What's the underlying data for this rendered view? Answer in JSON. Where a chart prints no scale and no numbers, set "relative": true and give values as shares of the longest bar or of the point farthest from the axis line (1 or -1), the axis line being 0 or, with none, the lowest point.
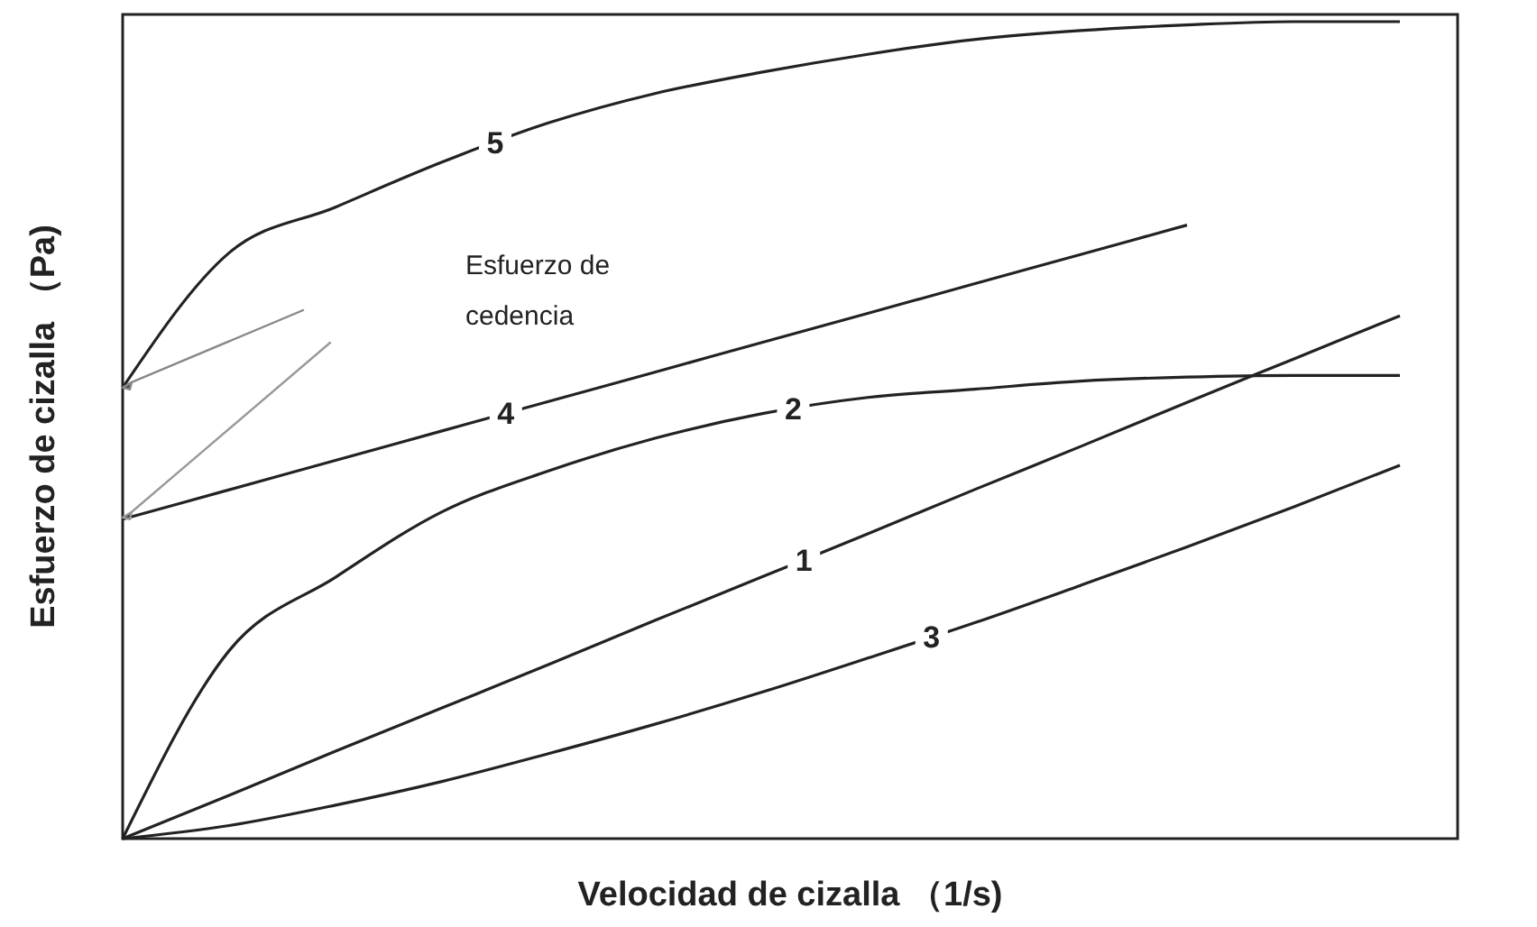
{
  "chart_data": {
    "type": "line",
    "relative": true,
    "xlabel": "Velocidad de cizalla （1/s)",
    "ylabel": "Esfuerzo de cizalla （Pa)",
    "categories": [
      null,
      null,
      null,
      null,
      null,
      null,
      null,
      null,
      null,
      null,
      null,
      null,
      null
    ],
    "marker": "none",
    "line_style": "solid",
    "series": [
      {
        "name": "1",
        "color": "#222222",
        "values": [
          0,
          0.053,
          0.107,
          0.16,
          0.213,
          0.267,
          0.32,
          0.373,
          0.427,
          0.48,
          0.534,
          0.587,
          0.64
        ]
      },
      {
        "name": "2",
        "color": "#222222",
        "values": [
          0,
          0.23,
          0.32,
          0.4,
          0.45,
          0.49,
          0.52,
          0.54,
          0.55,
          0.56,
          0.565,
          0.567,
          0.567
        ]
      },
      {
        "name": "3",
        "color": "#222222",
        "values": [
          0,
          0.016,
          0.041,
          0.07,
          0.104,
          0.14,
          0.179,
          0.221,
          0.264,
          0.31,
          0.357,
          0.406,
          0.457
        ]
      },
      {
        "name": "4",
        "color": "#222222",
        "values": [
          0.391,
          0.427,
          0.463,
          0.499,
          0.535,
          0.571,
          0.607,
          0.643,
          0.679,
          0.715,
          0.751,
          null,
          null
        ]
      },
      {
        "name": "5",
        "color": "#222222",
        "values": [
          0.552,
          0.717,
          0.773,
          0.828,
          0.876,
          0.912,
          0.938,
          0.96,
          0.978,
          0.989,
          0.996,
          1,
          1
        ]
      }
    ],
    "annotations": [
      "Esfuerzo de cedencia"
    ]
  }
}
